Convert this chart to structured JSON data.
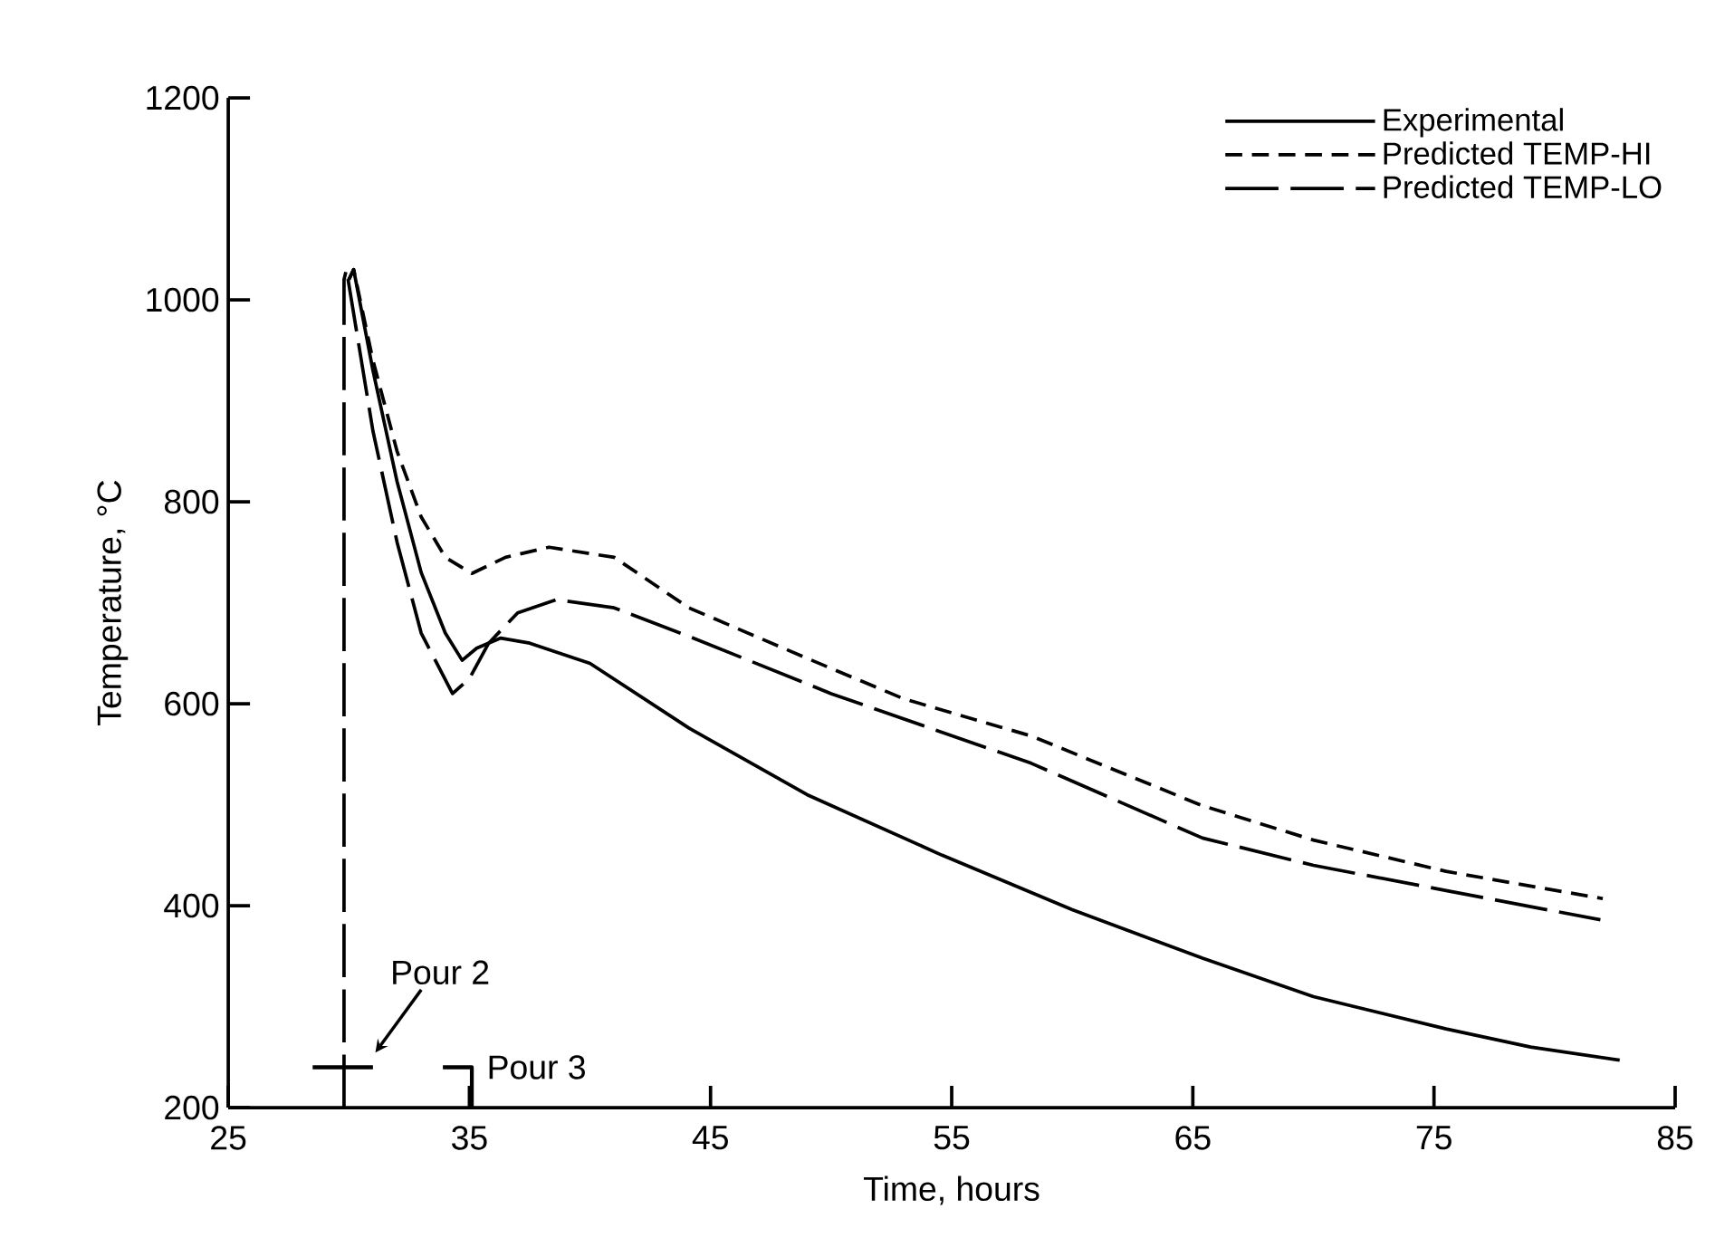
{
  "chart_data": {
    "type": "line",
    "xlabel": "Time, hours",
    "ylabel": "Temperature, °C",
    "xlim": [
      25,
      85
    ],
    "ylim": [
      200,
      1200
    ],
    "xticks": [
      25,
      35,
      45,
      55,
      65,
      75,
      85
    ],
    "yticks": [
      200,
      400,
      600,
      800,
      1000,
      1200
    ],
    "legend": "top right",
    "series": [
      {
        "name": "Experimental",
        "color": "#000000",
        "line_style": "solid",
        "x": [
          30.0,
          30.2,
          31.0,
          32.0,
          33.0,
          34.0,
          34.7,
          35.3,
          36.3,
          37.5,
          40,
          44.1,
          49,
          54.6,
          60,
          65.4,
          70,
          75.5,
          79,
          82.7
        ],
        "values": [
          1020,
          1030,
          930,
          820,
          730,
          670,
          643,
          655,
          665,
          660,
          640,
          576,
          510,
          450,
          396,
          348,
          310,
          278,
          260,
          247
        ]
      },
      {
        "name": "Predicted TEMP-HI",
        "color": "#000000",
        "line_style": "dashed",
        "x": [
          30.0,
          30.2,
          31.0,
          32.0,
          33.0,
          34.0,
          35.1,
          36.5,
          38.3,
          41,
          44.1,
          49,
          53,
          58.3,
          65.4,
          70,
          75.5,
          82.0
        ],
        "values": [
          1020,
          1030,
          940,
          850,
          785,
          745,
          729,
          745,
          755,
          745,
          695,
          645,
          605,
          568,
          499,
          465,
          434,
          407
        ]
      },
      {
        "name": "Predicted TEMP-LO",
        "color": "#000000",
        "line_style": "dashed",
        "x": [
          29.8,
          29.8,
          29.9,
          31.0,
          32.0,
          33.0,
          34.3,
          35.0,
          35.8,
          37.0,
          38.6,
          41,
          44.6,
          50,
          58.3,
          65.4,
          70,
          75.5,
          81.9
        ],
        "values": [
          200,
          1020,
          1030,
          870,
          760,
          670,
          610,
          625,
          660,
          690,
          703,
          695,
          662,
          610,
          541,
          467,
          440,
          415,
          386
        ]
      },
      {
        "color": "#000000",
        "line_style": "solid",
        "x": [
          28.5,
          31.0
        ],
        "values": [
          240,
          240
        ]
      },
      {
        "color": "#000000",
        "line_style": "solid",
        "x": [
          33.9,
          35.1,
          35.1
        ],
        "values": [
          240,
          240,
          200
        ]
      }
    ],
    "annotations": [
      {
        "text": "Pour 2",
        "x": 30.8,
        "y": 245
      },
      {
        "text": "Pour 3",
        "x": 35.1,
        "y": 240
      }
    ]
  }
}
